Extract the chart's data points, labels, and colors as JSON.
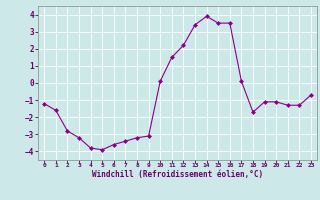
{
  "x": [
    0,
    1,
    2,
    3,
    4,
    5,
    6,
    7,
    8,
    9,
    10,
    11,
    12,
    13,
    14,
    15,
    16,
    17,
    18,
    19,
    20,
    21,
    22,
    23
  ],
  "y": [
    -1.2,
    -1.6,
    -2.8,
    -3.2,
    -3.8,
    -3.9,
    -3.6,
    -3.4,
    -3.2,
    -3.1,
    0.1,
    1.5,
    2.2,
    3.4,
    3.9,
    3.5,
    3.5,
    0.1,
    -1.7,
    -1.1,
    -1.1,
    -1.3,
    -1.3,
    -0.7
  ],
  "line_color": "#8B008B",
  "marker": "D",
  "marker_size": 2,
  "bg_color": "#cce8e8",
  "grid_color": "#b0d8d8",
  "xlabel": "Windchill (Refroidissement éolien,°C)",
  "xlim": [
    -0.5,
    23.5
  ],
  "ylim": [
    -4.5,
    4.5
  ],
  "yticks": [
    -4,
    -3,
    -2,
    -1,
    0,
    1,
    2,
    3,
    4
  ],
  "xtick_labels": [
    "0",
    "1",
    "2",
    "3",
    "4",
    "5",
    "6",
    "7",
    "8",
    "9",
    "10",
    "11",
    "12",
    "13",
    "14",
    "15",
    "16",
    "17",
    "18",
    "19",
    "20",
    "21",
    "22",
    "23"
  ]
}
